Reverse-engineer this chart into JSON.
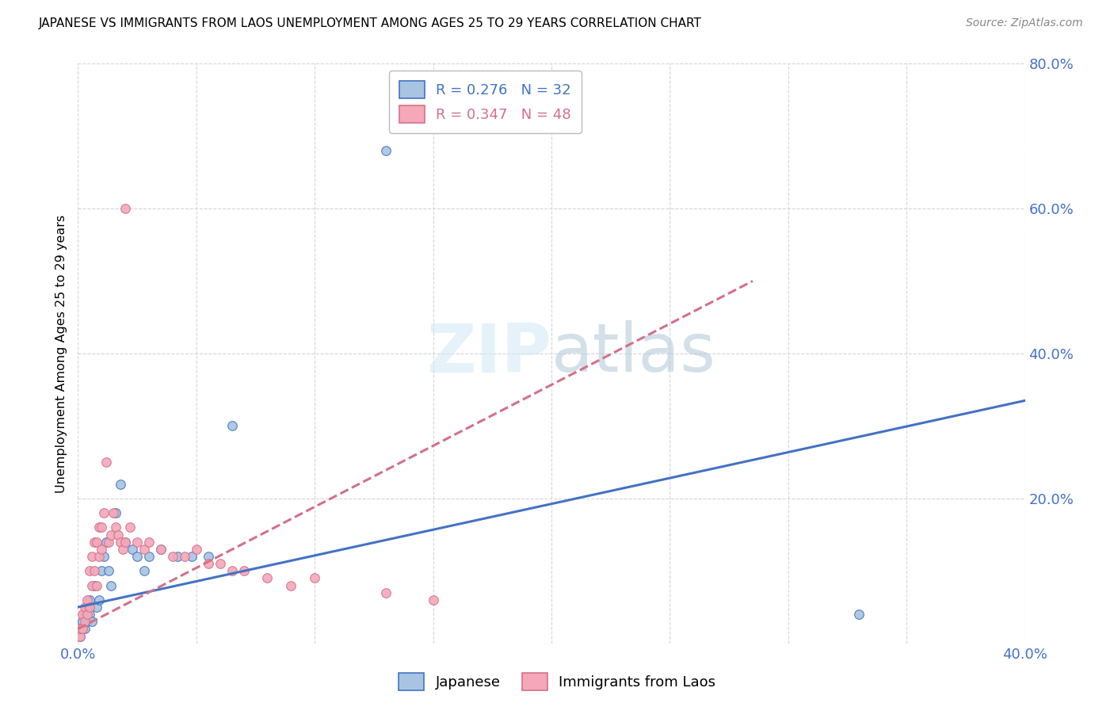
{
  "title": "JAPANESE VS IMMIGRANTS FROM LAOS UNEMPLOYMENT AMONG AGES 25 TO 29 YEARS CORRELATION CHART",
  "source": "Source: ZipAtlas.com",
  "ylabel": "Unemployment Among Ages 25 to 29 years",
  "xlim": [
    0.0,
    0.4
  ],
  "ylim": [
    0.0,
    0.8
  ],
  "xticks": [
    0.0,
    0.05,
    0.1,
    0.15,
    0.2,
    0.25,
    0.3,
    0.35,
    0.4
  ],
  "yticks": [
    0.0,
    0.2,
    0.4,
    0.6,
    0.8
  ],
  "xtick_labels": [
    "0.0%",
    "",
    "",
    "",
    "",
    "",
    "",
    "",
    "40.0%"
  ],
  "ytick_labels": [
    "",
    "20.0%",
    "40.0%",
    "60.0%",
    "80.0%"
  ],
  "japanese_color": "#a8c4e0",
  "laos_color": "#f4a8b8",
  "trend_japanese_color": "#4472c4",
  "trend_laos_color": "#d4708a",
  "japanese_x": [
    0.001,
    0.002,
    0.002,
    0.003,
    0.003,
    0.004,
    0.004,
    0.005,
    0.005,
    0.006,
    0.007,
    0.008,
    0.009,
    0.01,
    0.011,
    0.012,
    0.013,
    0.014,
    0.016,
    0.018,
    0.02,
    0.023,
    0.025,
    0.028,
    0.03,
    0.035,
    0.042,
    0.048,
    0.055,
    0.065,
    0.13,
    0.33
  ],
  "japanese_y": [
    0.01,
    0.02,
    0.03,
    0.02,
    0.04,
    0.03,
    0.05,
    0.04,
    0.06,
    0.03,
    0.08,
    0.05,
    0.06,
    0.1,
    0.12,
    0.14,
    0.1,
    0.08,
    0.18,
    0.22,
    0.14,
    0.13,
    0.12,
    0.1,
    0.12,
    0.13,
    0.12,
    0.12,
    0.12,
    0.3,
    0.68,
    0.04
  ],
  "laos_x": [
    0.001,
    0.001,
    0.002,
    0.002,
    0.003,
    0.003,
    0.004,
    0.004,
    0.005,
    0.005,
    0.006,
    0.006,
    0.007,
    0.007,
    0.008,
    0.008,
    0.009,
    0.009,
    0.01,
    0.01,
    0.011,
    0.012,
    0.013,
    0.014,
    0.015,
    0.016,
    0.017,
    0.018,
    0.019,
    0.02,
    0.022,
    0.025,
    0.028,
    0.03,
    0.035,
    0.04,
    0.045,
    0.05,
    0.055,
    0.06,
    0.065,
    0.07,
    0.08,
    0.09,
    0.1,
    0.13,
    0.15,
    0.02
  ],
  "laos_y": [
    0.01,
    0.02,
    0.02,
    0.04,
    0.03,
    0.05,
    0.04,
    0.06,
    0.05,
    0.1,
    0.08,
    0.12,
    0.1,
    0.14,
    0.08,
    0.14,
    0.12,
    0.16,
    0.13,
    0.16,
    0.18,
    0.25,
    0.14,
    0.15,
    0.18,
    0.16,
    0.15,
    0.14,
    0.13,
    0.14,
    0.16,
    0.14,
    0.13,
    0.14,
    0.13,
    0.12,
    0.12,
    0.13,
    0.11,
    0.11,
    0.1,
    0.1,
    0.09,
    0.08,
    0.09,
    0.07,
    0.06,
    0.6
  ],
  "trend_j_x0": 0.0,
  "trend_j_y0": 0.05,
  "trend_j_x1": 0.4,
  "trend_j_y1": 0.335,
  "trend_l_x0": 0.0,
  "trend_l_y0": 0.02,
  "trend_l_x1": 0.285,
  "trend_l_y1": 0.5
}
